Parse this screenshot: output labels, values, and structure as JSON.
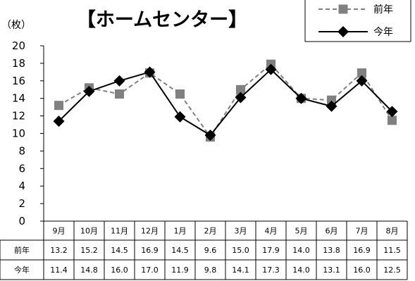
{
  "chart_data": {
    "type": "line",
    "title": "【ホームセンター】",
    "y_unit_label": "（枚）",
    "ylim": [
      0,
      20
    ],
    "y_step": 2,
    "y_ticks": [
      "0",
      "2",
      "4",
      "6",
      "8",
      "10",
      "12",
      "14",
      "16",
      "18",
      "20"
    ],
    "categories": [
      "9月",
      "10月",
      "11月",
      "12月",
      "1月",
      "2月",
      "3月",
      "4月",
      "5月",
      "6月",
      "7月",
      "8月"
    ],
    "grid": false,
    "legend_position": "top-right",
    "series": [
      {
        "name": "前年",
        "values": [
          13.2,
          15.2,
          14.5,
          16.9,
          14.5,
          9.6,
          15.0,
          17.9,
          14.0,
          13.8,
          16.9,
          11.5
        ],
        "labels": [
          "13.2",
          "15.2",
          "14.5",
          "16.9",
          "14.5",
          "9.6",
          "15.0",
          "17.9",
          "14.0",
          "13.8",
          "16.9",
          "11.5"
        ],
        "color": "#808080",
        "line_style": "dashed",
        "marker": "square"
      },
      {
        "name": "今年",
        "values": [
          11.4,
          14.8,
          16.0,
          17.0,
          11.9,
          9.8,
          14.1,
          17.3,
          14.0,
          13.1,
          16.0,
          12.5
        ],
        "labels": [
          "11.4",
          "14.8",
          "16.0",
          "17.0",
          "11.9",
          "9.8",
          "14.1",
          "17.3",
          "14.0",
          "13.1",
          "16.0",
          "12.5"
        ],
        "color": "#000000",
        "line_style": "solid",
        "marker": "diamond"
      }
    ]
  }
}
